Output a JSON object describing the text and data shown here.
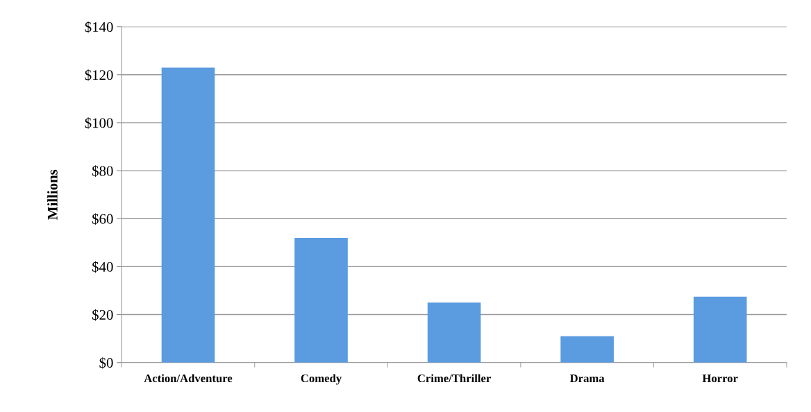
{
  "chart_data": {
    "type": "bar",
    "ylabel": "Millions",
    "categories": [
      "Action/Adventure",
      "Comedy",
      "Crime/Thriller",
      "Drama",
      "Horror"
    ],
    "values": [
      123,
      52,
      25,
      11,
      27.5
    ],
    "color": "#5b9be0",
    "ylim": [
      0,
      140
    ],
    "yticks": [
      {
        "value": 0,
        "label": "$0"
      },
      {
        "value": 20,
        "label": "$20"
      },
      {
        "value": 40,
        "label": "$40"
      },
      {
        "value": 60,
        "label": "$60"
      },
      {
        "value": 80,
        "label": "$80"
      },
      {
        "value": 100,
        "label": "$100"
      },
      {
        "value": 120,
        "label": "$120"
      },
      {
        "value": 140,
        "label": "$140"
      }
    ],
    "grid": "y"
  }
}
